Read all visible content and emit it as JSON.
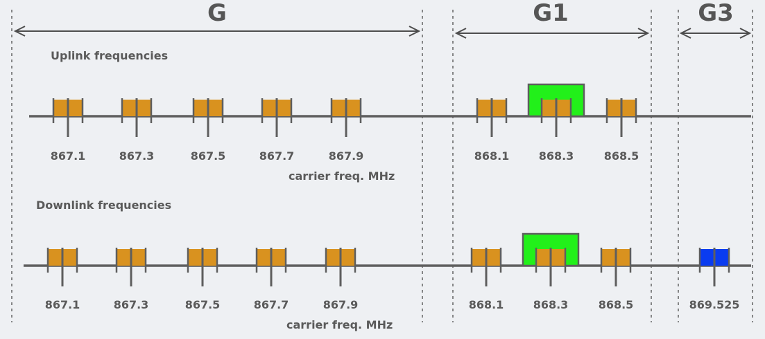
{
  "bands": {
    "g": "G",
    "g1": "G1",
    "g3": "G3"
  },
  "uplink": {
    "title": "Uplink frequencies",
    "unit": "carrier freq. MHz",
    "channels": [
      {
        "label": "867.1",
        "kind": "standard"
      },
      {
        "label": "867.3",
        "kind": "standard"
      },
      {
        "label": "867.5",
        "kind": "standard"
      },
      {
        "label": "867.7",
        "kind": "standard"
      },
      {
        "label": "867.9",
        "kind": "standard"
      },
      {
        "label": "868.1",
        "kind": "standard"
      },
      {
        "label": "868.3",
        "kind": "standard",
        "highlight": "green"
      },
      {
        "label": "868.5",
        "kind": "standard"
      }
    ]
  },
  "downlink": {
    "title": "Downlink frequencies",
    "unit": "carrier freq. MHz",
    "channels": [
      {
        "label": "867.1",
        "kind": "standard"
      },
      {
        "label": "867.3",
        "kind": "standard"
      },
      {
        "label": "867.5",
        "kind": "standard"
      },
      {
        "label": "867.7",
        "kind": "standard"
      },
      {
        "label": "867.9",
        "kind": "standard"
      },
      {
        "label": "868.1",
        "kind": "standard"
      },
      {
        "label": "868.3",
        "kind": "standard",
        "highlight": "green"
      },
      {
        "label": "868.5",
        "kind": "standard"
      },
      {
        "label": "869.525",
        "kind": "rx2"
      }
    ]
  },
  "colors": {
    "channel": "#d9921f",
    "highlight": "#22f01a",
    "rx2": "#0a3cf0",
    "background": "#eef0f3"
  }
}
